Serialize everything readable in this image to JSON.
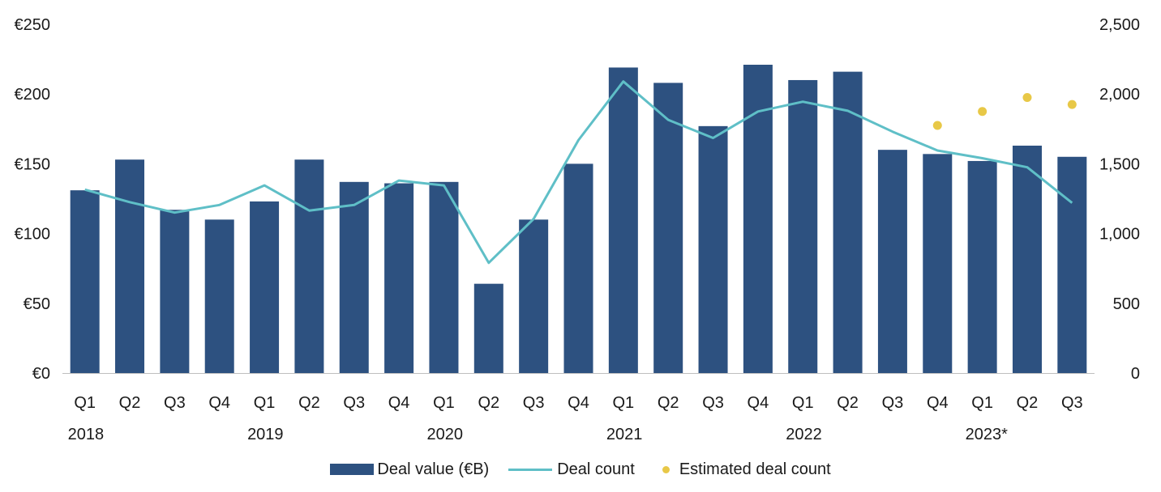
{
  "chart_data": {
    "type": "bar",
    "categories": [
      "Q1",
      "Q2",
      "Q3",
      "Q4",
      "Q1",
      "Q2",
      "Q3",
      "Q4",
      "Q1",
      "Q2",
      "Q3",
      "Q4",
      "Q1",
      "Q2",
      "Q3",
      "Q4",
      "Q1",
      "Q2",
      "Q3",
      "Q4",
      "Q1",
      "Q2",
      "Q3"
    ],
    "year_labels": [
      {
        "label": "2018",
        "index": 0
      },
      {
        "label": "2019",
        "index": 4
      },
      {
        "label": "2020",
        "index": 8
      },
      {
        "label": "2021",
        "index": 12
      },
      {
        "label": "2022",
        "index": 16
      },
      {
        "label": "2023*",
        "index": 20
      }
    ],
    "series": [
      {
        "name": "Deal value (€B)",
        "type": "bar",
        "axis": "left",
        "color": "#2d5180",
        "values": [
          131,
          153,
          117,
          110,
          123,
          153,
          137,
          136,
          137,
          64,
          110,
          150,
          219,
          208,
          177,
          221,
          210,
          216,
          160,
          157,
          152,
          163,
          155
        ]
      },
      {
        "name": "Deal count",
        "type": "line",
        "axis": "right",
        "color": "#5fbfc7",
        "values": [
          1315,
          1225,
          1150,
          1205,
          1345,
          1165,
          1205,
          1380,
          1345,
          790,
          1105,
          1670,
          2090,
          1815,
          1685,
          1875,
          1945,
          1880,
          1730,
          1595,
          1540,
          1475,
          1220
        ]
      },
      {
        "name": "Estimated deal count",
        "type": "scatter",
        "axis": "right",
        "color": "#e8c847",
        "points": [
          {
            "index": 19,
            "value": 1775
          },
          {
            "index": 20,
            "value": 1875
          },
          {
            "index": 21,
            "value": 1975
          },
          {
            "index": 22,
            "value": 1925
          }
        ]
      }
    ],
    "y_left": {
      "ylim": [
        0,
        250
      ],
      "ticks": [
        0,
        50,
        100,
        150,
        200,
        250
      ],
      "tick_labels": [
        "€0",
        "€50",
        "€100",
        "€150",
        "€200",
        "€250"
      ]
    },
    "y_right": {
      "ylim": [
        0,
        2500
      ],
      "ticks": [
        0,
        500,
        1000,
        1500,
        2000,
        2500
      ],
      "tick_labels": [
        "0",
        "500",
        "1,000",
        "1,500",
        "2,000",
        "2,500"
      ]
    },
    "grid": false,
    "legend_position": "bottom"
  },
  "legend": {
    "bar_label": "Deal value (€B)",
    "line_label": "Deal count",
    "dot_label": "Estimated deal count"
  }
}
